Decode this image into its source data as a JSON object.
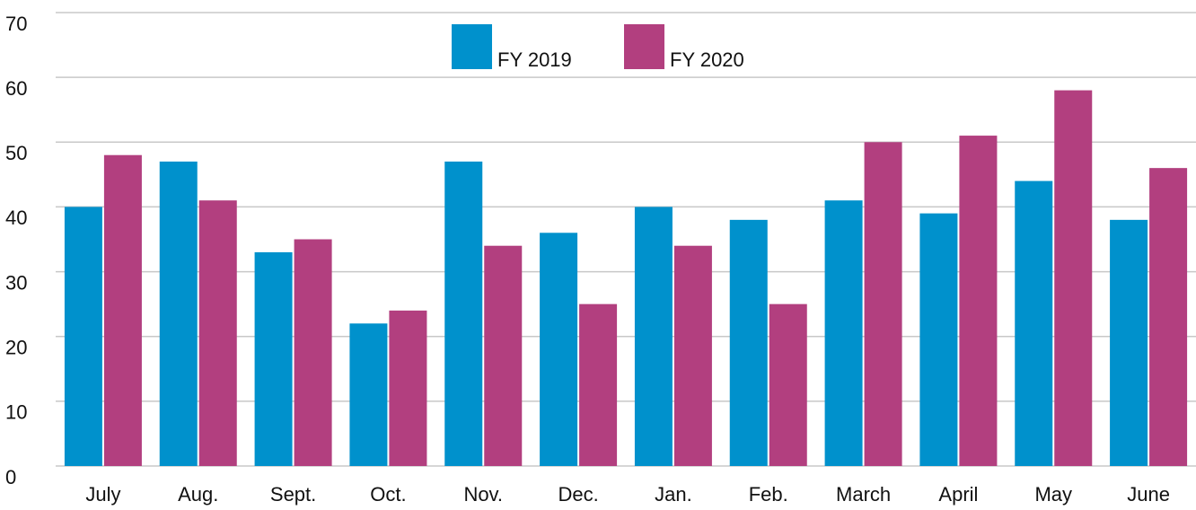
{
  "chart_data": {
    "type": "bar",
    "categories": [
      "July",
      "Aug.",
      "Sept.",
      "Oct.",
      "Nov.",
      "Dec.",
      "Jan.",
      "Feb.",
      "March",
      "April",
      "May",
      "June"
    ],
    "series": [
      {
        "name": "FY 2019",
        "color": "#0091cc",
        "values": [
          40,
          47,
          33,
          22,
          47,
          36,
          40,
          38,
          41,
          39,
          44,
          38
        ]
      },
      {
        "name": "FY 2020",
        "color": "#b23f7f",
        "values": [
          48,
          41,
          35,
          24,
          34,
          25,
          34,
          25,
          50,
          51,
          58,
          46
        ]
      }
    ],
    "ylim": [
      0,
      70
    ],
    "yticks": [
      0,
      10,
      20,
      30,
      40,
      50,
      60,
      70
    ],
    "grid": true,
    "legend": "top"
  }
}
